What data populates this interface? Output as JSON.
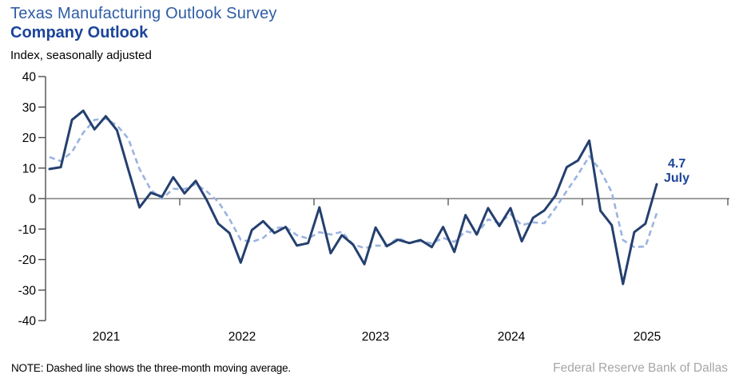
{
  "header": {
    "title": "Texas Manufacturing Outlook Survey",
    "subtitle": "Company Outlook",
    "axis_note": "Index, seasonally adjusted"
  },
  "annotation": {
    "value": "4.7",
    "month": "July"
  },
  "footer": {
    "note": "NOTE: Dashed line shows the three-month moving average.",
    "source": "Federal Reserve Bank of Dallas"
  },
  "colors": {
    "title": "#2E5CA6",
    "subtitle": "#1C4499",
    "annotation": "#1C4499",
    "monthly_line": "#24406F",
    "moving_average_line": "#9BB3DF",
    "zero_axis": "#7F7F7F",
    "y_axis": "#4D4D4D",
    "tick_text": "#000000",
    "source_text": "#A6A6A6"
  },
  "chart_data": {
    "type": "line",
    "title": "Company Outlook",
    "subtitle": "Texas Manufacturing Outlook Survey",
    "ylabel": "Index, seasonally adjusted",
    "ylim": [
      -40,
      40
    ],
    "ytick_interval": 10,
    "grid": false,
    "legend": "none",
    "x_start": "2021-01",
    "x_end": "2025-07",
    "year_labels": [
      "2021",
      "2022",
      "2023",
      "2024",
      "2025"
    ],
    "x_months": [
      "2021-01",
      "2021-02",
      "2021-03",
      "2021-04",
      "2021-05",
      "2021-06",
      "2021-07",
      "2021-08",
      "2021-09",
      "2021-10",
      "2021-11",
      "2021-12",
      "2022-01",
      "2022-02",
      "2022-03",
      "2022-04",
      "2022-05",
      "2022-06",
      "2022-07",
      "2022-08",
      "2022-09",
      "2022-10",
      "2022-11",
      "2022-12",
      "2023-01",
      "2023-02",
      "2023-03",
      "2023-04",
      "2023-05",
      "2023-06",
      "2023-07",
      "2023-08",
      "2023-09",
      "2023-10",
      "2023-11",
      "2023-12",
      "2024-01",
      "2024-02",
      "2024-03",
      "2024-04",
      "2024-05",
      "2024-06",
      "2024-07",
      "2024-08",
      "2024-09",
      "2024-10",
      "2024-11",
      "2024-12",
      "2025-01",
      "2025-02",
      "2025-03",
      "2025-04",
      "2025-05",
      "2025-06",
      "2025-07"
    ],
    "series": [
      {
        "name": "Company Outlook (monthly)",
        "style": "solid",
        "values": [
          9.7,
          10.3,
          25.8,
          28.8,
          22.7,
          27.0,
          22.4,
          9.6,
          -2.9,
          1.9,
          0.6,
          7.0,
          1.7,
          5.8,
          -0.6,
          -8.2,
          -11.3,
          -21.0,
          -10.3,
          -7.4,
          -11.3,
          -9.3,
          -15.4,
          -14.6,
          -2.9,
          -17.9,
          -12.0,
          -15.1,
          -21.5,
          -9.5,
          -15.6,
          -13.5,
          -14.6,
          -13.6,
          -15.9,
          -9.3,
          -17.5,
          -5.4,
          -11.8,
          -3.1,
          -9.0,
          -3.1,
          -14.0,
          -6.3,
          -3.9,
          1.0,
          10.3,
          12.5,
          19.0,
          -4.0,
          -8.7,
          -28.0,
          -11.0,
          -8.2,
          4.7
        ]
      },
      {
        "name": "Three-month moving average",
        "style": "dashed",
        "values": [
          13.6,
          12.3,
          15.3,
          21.6,
          25.8,
          26.2,
          24.0,
          19.7,
          9.7,
          2.9,
          -0.1,
          3.2,
          3.1,
          4.8,
          2.3,
          -1.0,
          -6.7,
          -13.5,
          -14.2,
          -12.9,
          -9.7,
          -9.3,
          -12.0,
          -13.1,
          -11.0,
          -11.8,
          -10.9,
          -15.0,
          -16.2,
          -15.4,
          -15.5,
          -12.9,
          -14.6,
          -13.9,
          -14.7,
          -12.9,
          -14.2,
          -10.7,
          -11.6,
          -6.8,
          -8.0,
          -5.1,
          -8.7,
          -7.8,
          -8.1,
          -3.1,
          2.5,
          7.9,
          13.9,
          9.2,
          2.1,
          -13.6,
          -15.9,
          -15.7,
          -4.8
        ]
      }
    ],
    "last_point": {
      "label": "July",
      "value": 4.7
    }
  }
}
